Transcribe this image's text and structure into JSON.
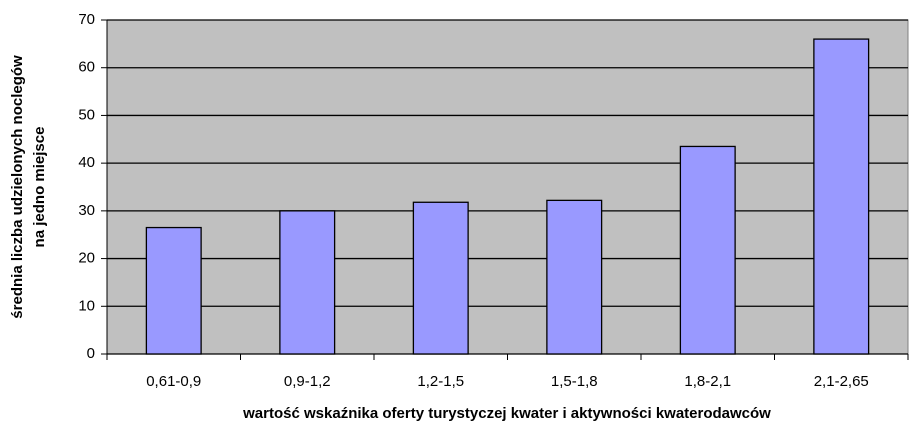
{
  "chart_data": {
    "type": "bar",
    "ylabel": [
      "średnia liczba udzielonych noclegów",
      "na jedno miejsce"
    ],
    "xlabel": "wartość wskaźnika oferty turystyczej kwater i aktywności kwaterodawców",
    "categories": [
      "0,61-0,9",
      "0,9-1,2",
      "1,2-1,5",
      "1,5-1,8",
      "1,8-2,1",
      "2,1-2,65"
    ],
    "values": [
      26.5,
      30,
      31.8,
      32.2,
      43.5,
      66
    ],
    "color": "#9999ff",
    "ylim": [
      0,
      70
    ],
    "yticks": [
      0,
      10,
      20,
      30,
      40,
      50,
      60,
      70
    ],
    "grid": true
  }
}
